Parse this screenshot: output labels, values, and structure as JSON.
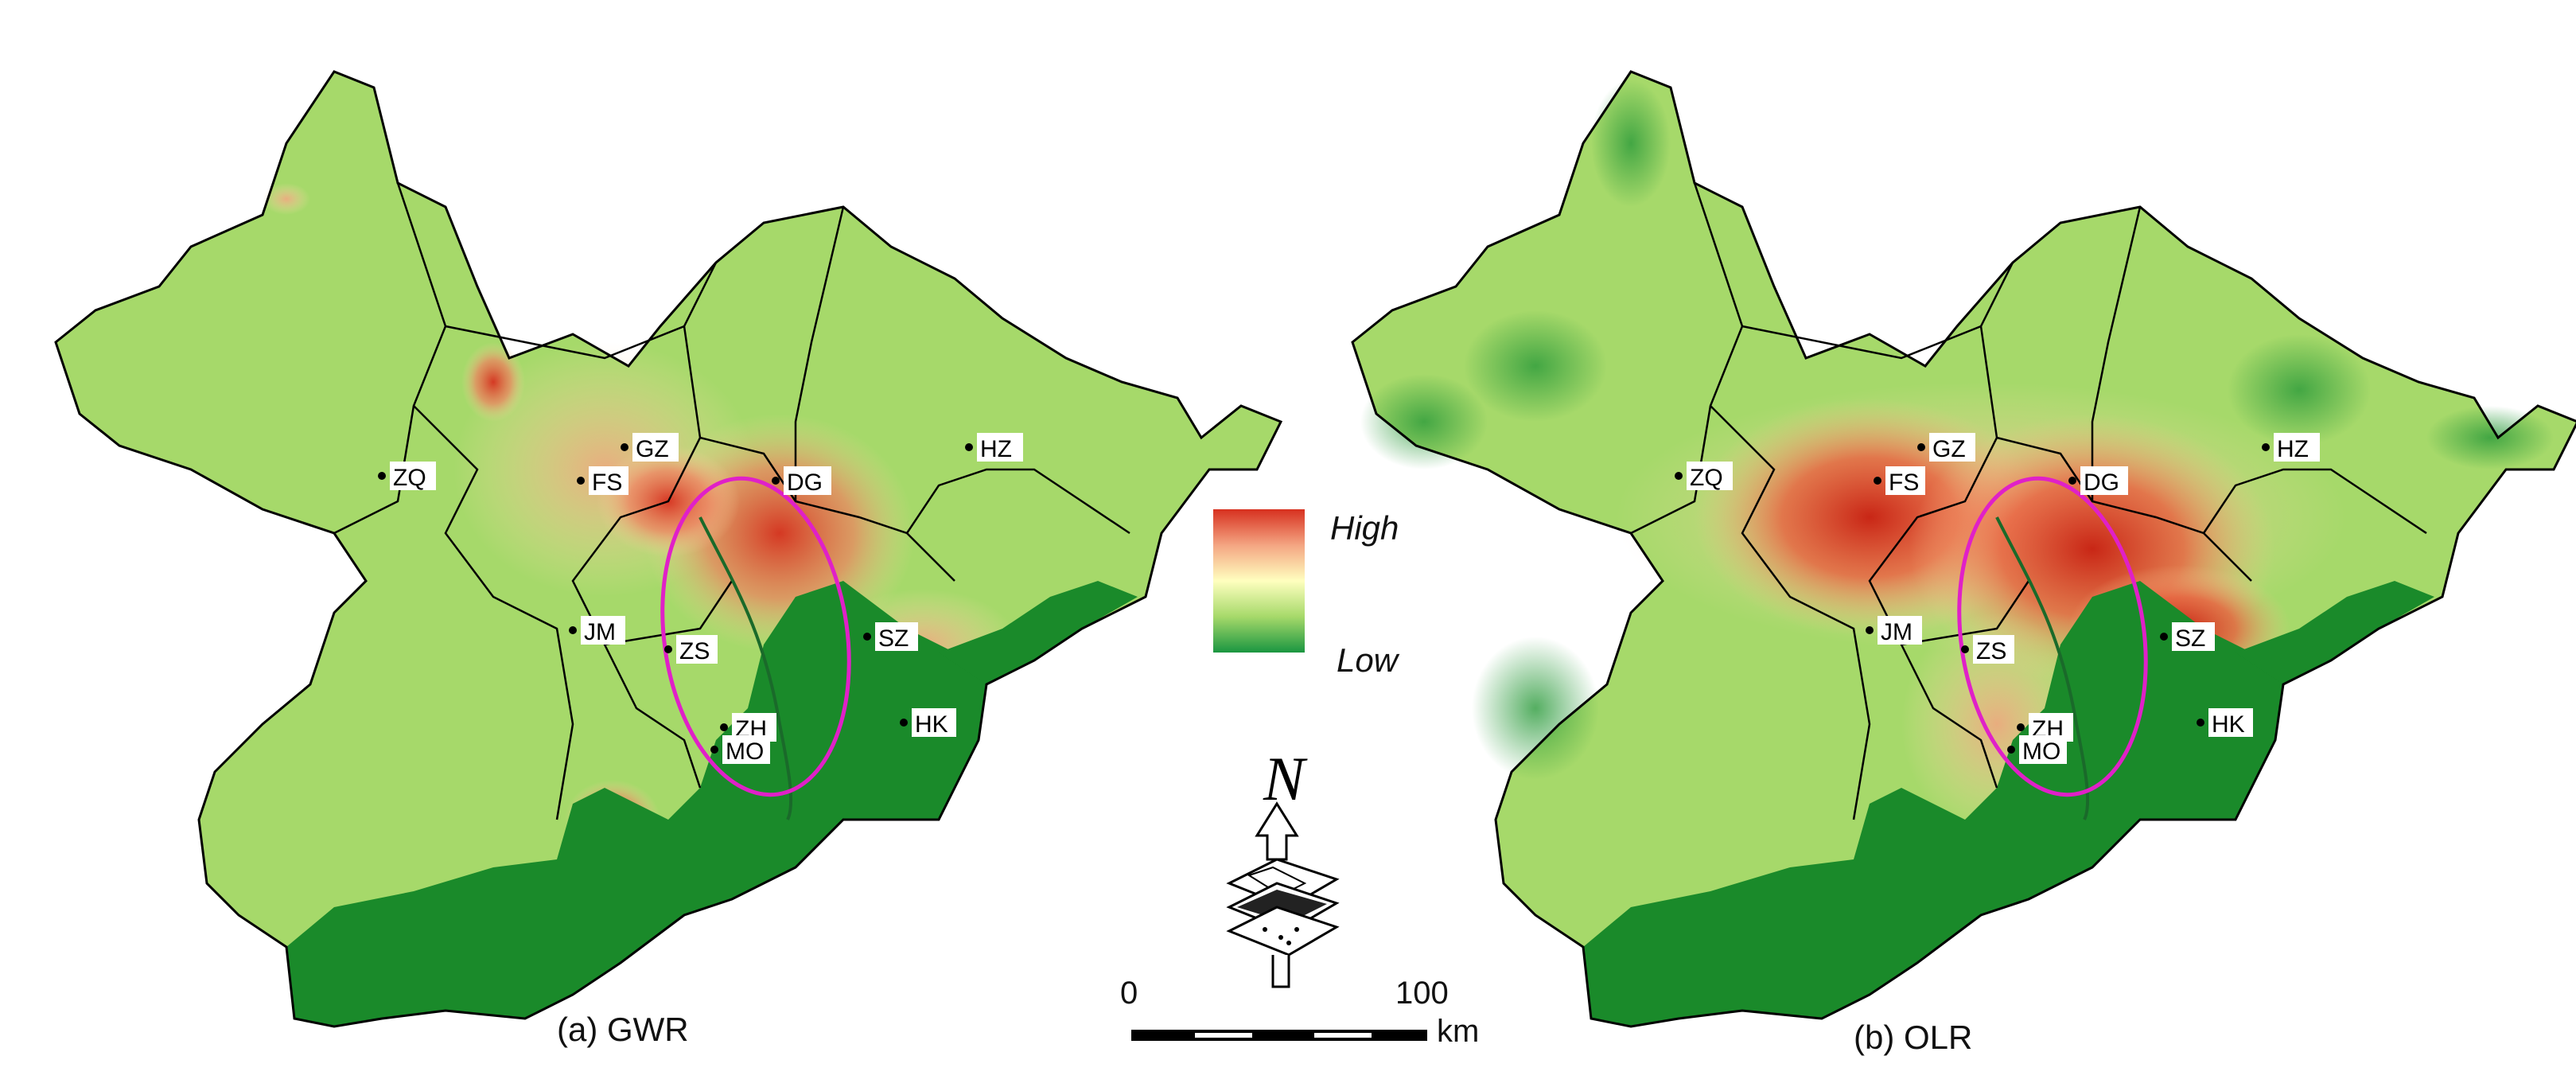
{
  "maps": [
    {
      "id": "gwr",
      "caption": "(a) GWR",
      "cities": [
        "ZQ",
        "GZ",
        "FS",
        "DG",
        "HZ",
        "JM",
        "ZS",
        "SZ",
        "ZH",
        "HK",
        "MO"
      ]
    },
    {
      "id": "olr",
      "caption": "(b) OLR",
      "cities": [
        "ZQ",
        "GZ",
        "FS",
        "DG",
        "HZ",
        "JM",
        "ZS",
        "SZ",
        "ZH",
        "HK",
        "MO"
      ]
    }
  ],
  "legend": {
    "high_label": "High",
    "low_label": "Low",
    "colors": {
      "high": "#d7301f",
      "mid": "#ffffbf",
      "low": "#1a9641"
    }
  },
  "north_arrow": {
    "letter": "N"
  },
  "scale_bar": {
    "start": "0",
    "end": "100",
    "unit": "km"
  },
  "colors": {
    "highlight_ellipse": "#e020c8",
    "boundary": "#000000"
  }
}
